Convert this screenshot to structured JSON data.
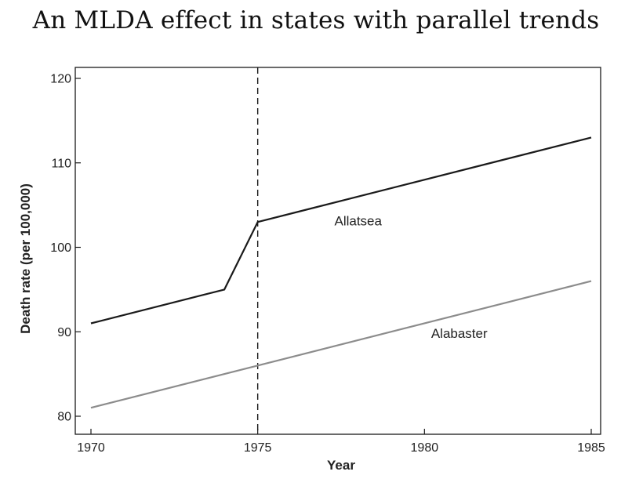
{
  "page": {
    "title": "An MLDA effect in states with parallel trends"
  },
  "chart_data": {
    "type": "line",
    "title": "An MLDA effect in states with parallel trends",
    "xlabel": "Year",
    "ylabel": "Death rate (per 100,000)",
    "xlim": [
      1970,
      1985
    ],
    "ylim": [
      78,
      121
    ],
    "x_ticks": [
      1970,
      1975,
      1980,
      1985
    ],
    "y_ticks": [
      80,
      90,
      100,
      110,
      120
    ],
    "grid": false,
    "reference_line": {
      "x": 1975,
      "style": "dashed"
    },
    "series": [
      {
        "name": "Allatsea",
        "color": "#1a1a1a",
        "points": [
          [
            1970,
            91
          ],
          [
            1974,
            95
          ],
          [
            1975,
            103
          ],
          [
            1985,
            113
          ]
        ]
      },
      {
        "name": "Alabaster",
        "color": "#8c8c8c",
        "points": [
          [
            1970,
            81
          ],
          [
            1985,
            96
          ]
        ]
      }
    ],
    "annotations": [
      {
        "text": "Allatsea",
        "x": 1977.3,
        "y": 102.6
      },
      {
        "text": "Alabaster",
        "x": 1980.2,
        "y": 89.3
      }
    ]
  }
}
